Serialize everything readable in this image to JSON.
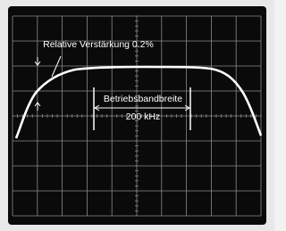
{
  "annotations": {
    "gain": "Relative Verstärkung 0.2%",
    "bandwidth_label": "Betriebsbandbreite",
    "bandwidth_value": "200 kHz"
  }
}
